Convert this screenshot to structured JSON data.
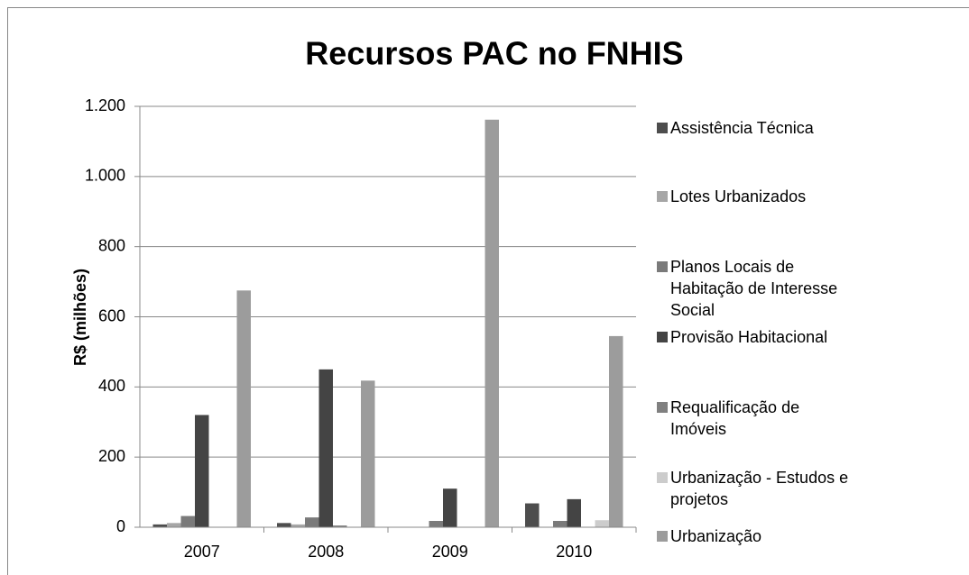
{
  "chart_data": {
    "type": "bar",
    "title": "Recursos PAC no FNHIS",
    "y_label": "R$ (milhões)",
    "categories": [
      "2007",
      "2008",
      "2009",
      "2010"
    ],
    "series": [
      {
        "name": "Assistência Técnica",
        "color": "#4d4d4d",
        "values": [
          8,
          12,
          0,
          68
        ]
      },
      {
        "name": "Lotes Urbanizados",
        "color": "#a6a6a6",
        "values": [
          12,
          8,
          0,
          0
        ]
      },
      {
        "name": "Planos Locais de Habitação de Interesse Social",
        "color": "#7a7a7a",
        "values": [
          32,
          28,
          18,
          18
        ]
      },
      {
        "name": "Provisão Habitacional",
        "color": "#444444",
        "values": [
          320,
          450,
          110,
          80
        ]
      },
      {
        "name": "Requalificação de Imóveis",
        "color": "#808080",
        "values": [
          0,
          5,
          0,
          0
        ]
      },
      {
        "name": "Urbanização - Estudos e projetos",
        "color": "#cccccc",
        "values": [
          0,
          0,
          0,
          20
        ]
      },
      {
        "name": "Urbanização",
        "color": "#9c9c9c",
        "values": [
          675,
          418,
          1162,
          545
        ]
      }
    ],
    "ylim": [
      0,
      1200
    ],
    "yticks": [
      0,
      200,
      400,
      600,
      800,
      {
        "value": 1000,
        "label": "1.000"
      },
      {
        "value": 1200,
        "label": "1.200"
      }
    ],
    "grid": true,
    "legend": "right"
  }
}
